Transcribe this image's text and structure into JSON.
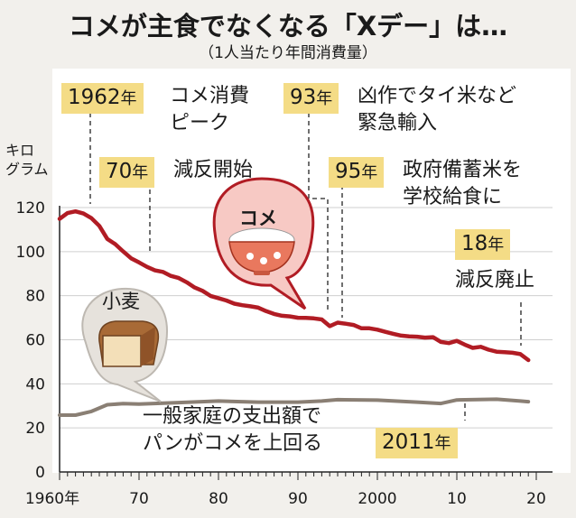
{
  "title": "コメが主食でなくなる「Xデー」は…",
  "subtitle": "（1人当たり年間消費量）",
  "unit_label": [
    "キロ",
    "グラム"
  ],
  "colors": {
    "rice": "#b11c24",
    "wheat": "#8a7f74",
    "highlight": "#f4dc86",
    "panel": "#ffffff"
  },
  "annotations": [
    {
      "year": "1962",
      "suffix": "年",
      "lines": [
        "コメ消費",
        "ピーク"
      ]
    },
    {
      "year": "70",
      "suffix": "年",
      "lines": [
        "減反開始"
      ]
    },
    {
      "year": "93",
      "suffix": "年",
      "lines": [
        "凶作でタイ米など",
        "緊急輸入"
      ]
    },
    {
      "year": "95",
      "suffix": "年",
      "lines": [
        "政府備蓄米を",
        "学校給食に"
      ]
    },
    {
      "year": "18",
      "suffix": "年",
      "lines": [
        "減反廃止"
      ]
    },
    {
      "year": "2011",
      "suffix": "年",
      "lines": [
        "一般家庭の支出額で",
        "パンがコメを上回る"
      ]
    }
  ],
  "icons": {
    "rice": "rice-bowl-icon",
    "wheat": "bread-loaf-icon"
  },
  "chart_data": {
    "type": "line",
    "ylabel": "キログラム",
    "ylim": [
      0,
      120
    ],
    "yticks": [
      0,
      20,
      40,
      60,
      80,
      100,
      120
    ],
    "xlim": [
      1960,
      2020
    ],
    "xticks": [
      {
        "value": 1960,
        "label": "1960年"
      },
      {
        "value": 1970,
        "label": "70"
      },
      {
        "value": 1980,
        "label": "80"
      },
      {
        "value": 1990,
        "label": "90"
      },
      {
        "value": 2000,
        "label": "2000"
      },
      {
        "value": 2010,
        "label": "10"
      },
      {
        "value": 2020,
        "label": "20"
      }
    ],
    "grid": true,
    "series": [
      {
        "name": "コメ",
        "x": [
          1960,
          1961,
          1962,
          1963,
          1964,
          1965,
          1966,
          1967,
          1968,
          1969,
          1970,
          1971,
          1972,
          1973,
          1974,
          1975,
          1976,
          1977,
          1978,
          1979,
          1980,
          1981,
          1982,
          1983,
          1984,
          1985,
          1986,
          1987,
          1988,
          1989,
          1990,
          1991,
          1992,
          1993,
          1994,
          1995,
          1996,
          1997,
          1998,
          1999,
          2000,
          2001,
          2002,
          2003,
          2004,
          2005,
          2006,
          2007,
          2008,
          2009,
          2010,
          2011,
          2012,
          2013,
          2014,
          2015,
          2016,
          2017,
          2018,
          2019
        ],
        "values": [
          114.9,
          117.5,
          118.3,
          117.3,
          115.2,
          111.7,
          105.8,
          103.4,
          100.1,
          97.0,
          95.1,
          93.1,
          91.5,
          90.8,
          89.0,
          88.0,
          86.1,
          83.7,
          82.2,
          79.9,
          78.9,
          77.8,
          76.4,
          75.7,
          75.2,
          74.6,
          73.0,
          71.7,
          70.9,
          70.6,
          70.0,
          69.9,
          69.7,
          69.2,
          66.2,
          67.8,
          67.3,
          66.7,
          65.2,
          65.2,
          64.6,
          63.6,
          62.7,
          61.9,
          61.5,
          61.4,
          61.0,
          61.2,
          59.0,
          58.5,
          59.5,
          57.8,
          56.3,
          56.8,
          55.5,
          54.6,
          54.4,
          54.1,
          53.5,
          50.8
        ]
      },
      {
        "name": "小麦",
        "x": [
          1960,
          1962,
          1964,
          1966,
          1968,
          1970,
          1975,
          1980,
          1985,
          1990,
          1993,
          1995,
          2000,
          2005,
          2008,
          2010,
          2015,
          2018,
          2019
        ],
        "values": [
          25.8,
          25.8,
          27.5,
          30.5,
          31.0,
          30.8,
          31.5,
          32.2,
          31.7,
          31.7,
          32.2,
          32.8,
          32.6,
          31.7,
          31.1,
          32.7,
          33.0,
          32.2,
          31.9
        ]
      }
    ]
  }
}
